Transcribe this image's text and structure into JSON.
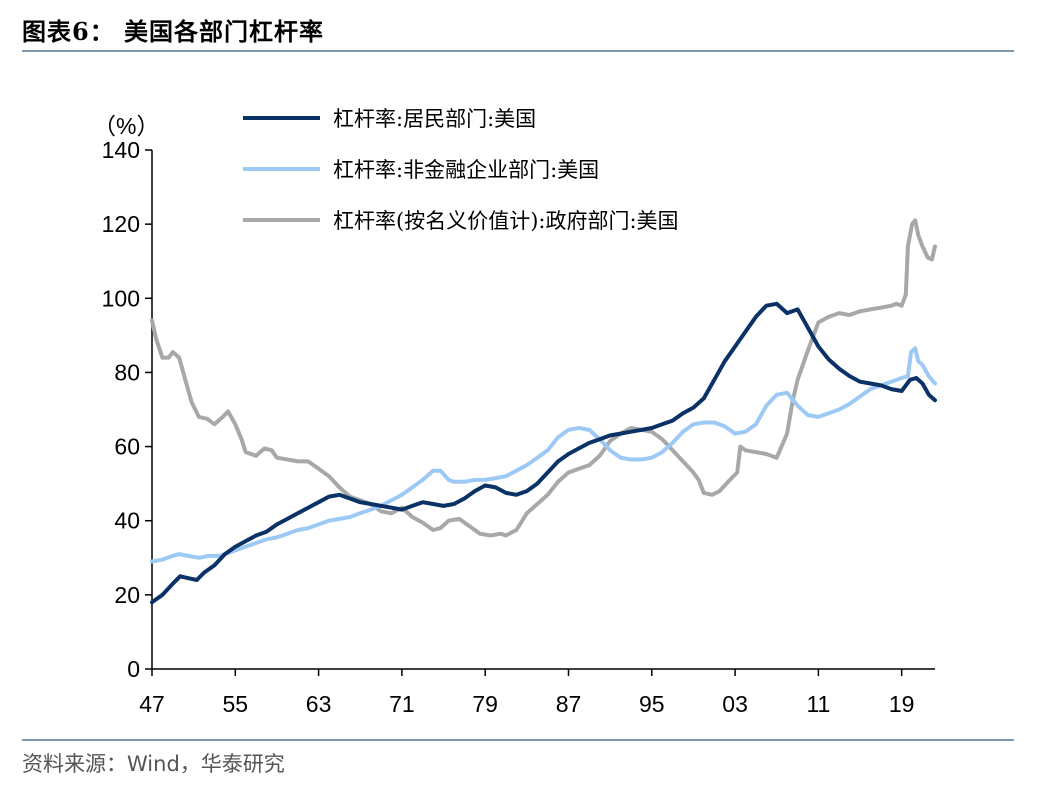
{
  "figure": {
    "title": "图表6：  美国各部门杠杆率",
    "source": "资料来源：Wind，华泰研究"
  },
  "chart_data": {
    "type": "line",
    "unit_label": "（%）",
    "ylim": [
      0,
      140
    ],
    "yticks": [
      0,
      20,
      40,
      60,
      80,
      100,
      120,
      140
    ],
    "xlim": [
      1947,
      2022.2
    ],
    "xticks": [
      {
        "year": 1947,
        "label": "47"
      },
      {
        "year": 1955,
        "label": "55"
      },
      {
        "year": 1963,
        "label": "63"
      },
      {
        "year": 1971,
        "label": "71"
      },
      {
        "year": 1979,
        "label": "79"
      },
      {
        "year": 1987,
        "label": "87"
      },
      {
        "year": 1995,
        "label": "95"
      },
      {
        "year": 2003,
        "label": "03"
      },
      {
        "year": 2011,
        "label": "11"
      },
      {
        "year": 2019,
        "label": "19"
      }
    ],
    "grid": false,
    "legend_position": "top",
    "series": [
      {
        "name": "杠杆率:居民部门:美国",
        "color": "#0a3266",
        "points": [
          [
            1947,
            18
          ],
          [
            1948,
            20
          ],
          [
            1949,
            23
          ],
          [
            1949.7,
            25
          ],
          [
            1950.5,
            24.5
          ],
          [
            1951.3,
            24
          ],
          [
            1952,
            26
          ],
          [
            1953,
            28
          ],
          [
            1954,
            31
          ],
          [
            1955,
            33
          ],
          [
            1956,
            34.5
          ],
          [
            1957,
            36
          ],
          [
            1958,
            37
          ],
          [
            1959,
            39
          ],
          [
            1960,
            40.5
          ],
          [
            1961,
            42
          ],
          [
            1962,
            43.5
          ],
          [
            1963,
            45
          ],
          [
            1964,
            46.5
          ],
          [
            1965,
            47
          ],
          [
            1966,
            46
          ],
          [
            1967,
            45
          ],
          [
            1968,
            44.5
          ],
          [
            1969,
            44
          ],
          [
            1970,
            43.5
          ],
          [
            1971,
            43
          ],
          [
            1972,
            44
          ],
          [
            1973,
            45
          ],
          [
            1974,
            44.5
          ],
          [
            1975,
            44
          ],
          [
            1976,
            44.5
          ],
          [
            1977,
            46
          ],
          [
            1978,
            48
          ],
          [
            1979,
            49.5
          ],
          [
            1980,
            49
          ],
          [
            1981,
            47.5
          ],
          [
            1982,
            47
          ],
          [
            1983,
            48
          ],
          [
            1984,
            50
          ],
          [
            1985,
            53
          ],
          [
            1986,
            56
          ],
          [
            1987,
            58
          ],
          [
            1988,
            59.5
          ],
          [
            1989,
            61
          ],
          [
            1990,
            62
          ],
          [
            1991,
            63
          ],
          [
            1992,
            63.5
          ],
          [
            1993,
            64
          ],
          [
            1994,
            64.5
          ],
          [
            1995,
            65
          ],
          [
            1996,
            66
          ],
          [
            1997,
            67
          ],
          [
            1998,
            69
          ],
          [
            1999,
            70.5
          ],
          [
            2000,
            73
          ],
          [
            2001,
            78
          ],
          [
            2002,
            83
          ],
          [
            2003,
            87
          ],
          [
            2004,
            91
          ],
          [
            2005,
            95
          ],
          [
            2006,
            98
          ],
          [
            2007,
            98.5
          ],
          [
            2008,
            96
          ],
          [
            2009,
            97
          ],
          [
            2010,
            92
          ],
          [
            2011,
            87
          ],
          [
            2012,
            83.5
          ],
          [
            2013,
            81
          ],
          [
            2014,
            79
          ],
          [
            2015,
            77.5
          ],
          [
            2016,
            77
          ],
          [
            2017,
            76.5
          ],
          [
            2018,
            75.5
          ],
          [
            2019,
            75
          ],
          [
            2019.8,
            78
          ],
          [
            2020.4,
            78.5
          ],
          [
            2021,
            77
          ],
          [
            2021.6,
            74
          ],
          [
            2022.2,
            72.5
          ]
        ]
      },
      {
        "name": "杠杆率:非金融企业部门:美国",
        "color": "#9dc9f5",
        "points": [
          [
            1947,
            29
          ],
          [
            1948,
            29.5
          ],
          [
            1949,
            30.5
          ],
          [
            1949.6,
            31
          ],
          [
            1950.5,
            30.5
          ],
          [
            1951.5,
            30
          ],
          [
            1952.5,
            30.5
          ],
          [
            1953.5,
            30.5
          ],
          [
            1954.5,
            31.5
          ],
          [
            1955,
            32
          ],
          [
            1956,
            33
          ],
          [
            1957,
            34
          ],
          [
            1958,
            35
          ],
          [
            1959,
            35.5
          ],
          [
            1960,
            36.5
          ],
          [
            1961,
            37.5
          ],
          [
            1962,
            38
          ],
          [
            1963,
            39
          ],
          [
            1964,
            40
          ],
          [
            1965,
            40.5
          ],
          [
            1966,
            41
          ],
          [
            1967,
            42
          ],
          [
            1968,
            43
          ],
          [
            1969,
            44
          ],
          [
            1970,
            45.5
          ],
          [
            1971,
            47
          ],
          [
            1972,
            49
          ],
          [
            1973,
            51
          ],
          [
            1974,
            53.5
          ],
          [
            1974.7,
            53.5
          ],
          [
            1975.5,
            51
          ],
          [
            1976,
            50.5
          ],
          [
            1977,
            50.5
          ],
          [
            1978,
            51
          ],
          [
            1979,
            51
          ],
          [
            1980,
            51.5
          ],
          [
            1981,
            52
          ],
          [
            1982,
            53.5
          ],
          [
            1983,
            55
          ],
          [
            1984,
            57
          ],
          [
            1985,
            59
          ],
          [
            1986,
            62.5
          ],
          [
            1987,
            64.5
          ],
          [
            1988,
            65
          ],
          [
            1989,
            64.5
          ],
          [
            1990,
            62
          ],
          [
            1991,
            59
          ],
          [
            1992,
            57
          ],
          [
            1993,
            56.5
          ],
          [
            1994,
            56.5
          ],
          [
            1995,
            57
          ],
          [
            1996,
            58.5
          ],
          [
            1997,
            61
          ],
          [
            1998,
            64
          ],
          [
            1999,
            66
          ],
          [
            2000,
            66.5
          ],
          [
            2001,
            66.5
          ],
          [
            2002,
            65.5
          ],
          [
            2003,
            63.5
          ],
          [
            2004,
            64
          ],
          [
            2005,
            66
          ],
          [
            2006,
            71
          ],
          [
            2007,
            74
          ],
          [
            2008,
            74.5
          ],
          [
            2009,
            71
          ],
          [
            2010,
            68.5
          ],
          [
            2011,
            68
          ],
          [
            2012,
            69
          ],
          [
            2013,
            70
          ],
          [
            2014,
            71.5
          ],
          [
            2015,
            73.5
          ],
          [
            2016,
            75.5
          ],
          [
            2017,
            76.5
          ],
          [
            2018,
            77.5
          ],
          [
            2019,
            78.5
          ],
          [
            2019.6,
            79
          ],
          [
            2019.9,
            85.5
          ],
          [
            2020.3,
            86.5
          ],
          [
            2020.6,
            83
          ],
          [
            2021,
            82
          ],
          [
            2021.6,
            79
          ],
          [
            2022.2,
            77
          ]
        ]
      },
      {
        "name": "杠杆率(按名义价值计):政府部门:美国",
        "color": "#a8a8a8",
        "points": [
          [
            1947,
            94
          ],
          [
            1947.4,
            89
          ],
          [
            1948,
            84
          ],
          [
            1948.6,
            84
          ],
          [
            1949,
            85.5
          ],
          [
            1949.6,
            84
          ],
          [
            1950.2,
            78
          ],
          [
            1950.8,
            72
          ],
          [
            1951.5,
            68
          ],
          [
            1952.3,
            67.5
          ],
          [
            1953,
            66
          ],
          [
            1953.8,
            68
          ],
          [
            1954.3,
            69.5
          ],
          [
            1955,
            66
          ],
          [
            1955.6,
            62
          ],
          [
            1956,
            58.5
          ],
          [
            1957,
            57.5
          ],
          [
            1957.8,
            59.5
          ],
          [
            1958.5,
            59
          ],
          [
            1959,
            57
          ],
          [
            1960,
            56.5
          ],
          [
            1961,
            56
          ],
          [
            1962,
            56
          ],
          [
            1963,
            54
          ],
          [
            1964,
            52
          ],
          [
            1965,
            49
          ],
          [
            1966,
            46.5
          ],
          [
            1967,
            45.5
          ],
          [
            1968,
            44.5
          ],
          [
            1969,
            42.5
          ],
          [
            1970,
            42
          ],
          [
            1971,
            43.5
          ],
          [
            1972,
            41
          ],
          [
            1973,
            39.5
          ],
          [
            1974,
            37.5
          ],
          [
            1974.7,
            38
          ],
          [
            1975.5,
            40
          ],
          [
            1976.5,
            40.5
          ],
          [
            1977.5,
            38.5
          ],
          [
            1978.5,
            36.5
          ],
          [
            1979.5,
            36
          ],
          [
            1980.5,
            36.5
          ],
          [
            1981,
            36
          ],
          [
            1982,
            37.5
          ],
          [
            1983,
            42
          ],
          [
            1984,
            44.5
          ],
          [
            1985,
            47
          ],
          [
            1986,
            50.5
          ],
          [
            1987,
            53
          ],
          [
            1988,
            54
          ],
          [
            1989,
            55
          ],
          [
            1990,
            57.5
          ],
          [
            1991,
            61.5
          ],
          [
            1992,
            63.5
          ],
          [
            1993,
            65
          ],
          [
            1994,
            64.5
          ],
          [
            1995,
            64
          ],
          [
            1996,
            62
          ],
          [
            1997,
            59
          ],
          [
            1998,
            56
          ],
          [
            1999,
            53
          ],
          [
            1999.5,
            51
          ],
          [
            2000,
            47.5
          ],
          [
            2000.8,
            47
          ],
          [
            2001.5,
            48
          ],
          [
            2002.5,
            51
          ],
          [
            2003.2,
            53
          ],
          [
            2003.5,
            60
          ],
          [
            2004,
            59
          ],
          [
            2005,
            58.5
          ],
          [
            2006,
            58
          ],
          [
            2007,
            57
          ],
          [
            2008,
            63.5
          ],
          [
            2008.5,
            72
          ],
          [
            2009,
            78
          ],
          [
            2010,
            86
          ],
          [
            2011,
            93.5
          ],
          [
            2012,
            95
          ],
          [
            2013,
            96
          ],
          [
            2014,
            95.5
          ],
          [
            2015,
            96.5
          ],
          [
            2016,
            97
          ],
          [
            2017,
            97.5
          ],
          [
            2018,
            98
          ],
          [
            2018.5,
            98.5
          ],
          [
            2019,
            98
          ],
          [
            2019.4,
            101
          ],
          [
            2019.6,
            114
          ],
          [
            2020,
            120
          ],
          [
            2020.3,
            121
          ],
          [
            2020.6,
            117
          ],
          [
            2021,
            114
          ],
          [
            2021.5,
            111
          ],
          [
            2021.9,
            110.5
          ],
          [
            2022.2,
            114
          ]
        ]
      }
    ]
  }
}
